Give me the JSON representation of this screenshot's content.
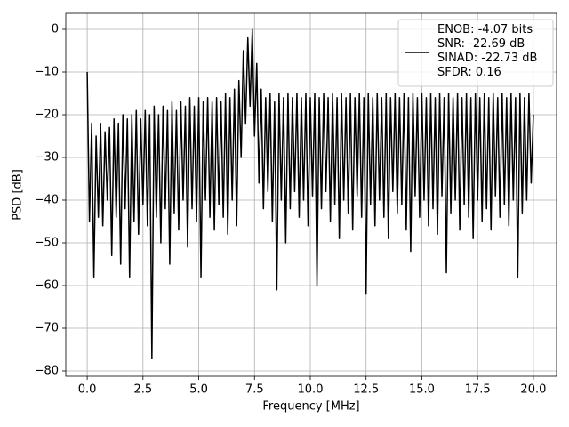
{
  "chart_data": {
    "type": "line",
    "xlabel": "Frequency [MHz]",
    "ylabel": "PSD [dB]",
    "xlim": [
      -0.96,
      21.04
    ],
    "ylim": [
      -81.25,
      3.75
    ],
    "xticks": [
      {
        "value": 0,
        "label": "0.0"
      },
      {
        "value": 2.5,
        "label": "2.5"
      },
      {
        "value": 5,
        "label": "5.0"
      },
      {
        "value": 7.5,
        "label": "7.5"
      },
      {
        "value": 10,
        "label": "10.0"
      },
      {
        "value": 12.5,
        "label": "12.5"
      },
      {
        "value": 15,
        "label": "15.0"
      },
      {
        "value": 17.5,
        "label": "17.5"
      },
      {
        "value": 20,
        "label": "20.0"
      }
    ],
    "yticks": [
      0,
      {
        "value": -10,
        "label": "−10"
      },
      {
        "value": -20,
        "label": "−20"
      },
      {
        "value": -30,
        "label": "−30"
      },
      {
        "value": -40,
        "label": "−40"
      },
      {
        "value": -50,
        "label": "−50"
      },
      {
        "value": -60,
        "label": "−60"
      },
      {
        "value": -70,
        "label": "−70"
      },
      {
        "value": -80,
        "label": "−80"
      }
    ],
    "grid": true,
    "legend": "upper right",
    "x": [
      0,
      0.1,
      0.2,
      0.3,
      0.4,
      0.5,
      0.6,
      0.7,
      0.8,
      0.9,
      1,
      1.1,
      1.2,
      1.3,
      1.4,
      1.5,
      1.6,
      1.7,
      1.8,
      1.9,
      2,
      2.1,
      2.2,
      2.3,
      2.4,
      2.5,
      2.6,
      2.7,
      2.8,
      2.9,
      3,
      3.1,
      3.2,
      3.3,
      3.4,
      3.5,
      3.6,
      3.7,
      3.8,
      3.9,
      4,
      4.1,
      4.2,
      4.3,
      4.4,
      4.5,
      4.6,
      4.7,
      4.8,
      4.9,
      5,
      5.1,
      5.2,
      5.3,
      5.4,
      5.5,
      5.6,
      5.7,
      5.8,
      5.9,
      6,
      6.1,
      6.2,
      6.3,
      6.4,
      6.5,
      6.6,
      6.7,
      6.8,
      6.9,
      7,
      7.1,
      7.2,
      7.3,
      7.4,
      7.5,
      7.6,
      7.7,
      7.8,
      7.9,
      8,
      8.1,
      8.2,
      8.3,
      8.4,
      8.5,
      8.6,
      8.7,
      8.8,
      8.9,
      9,
      9.1,
      9.2,
      9.3,
      9.4,
      9.5,
      9.6,
      9.7,
      9.8,
      9.9,
      10,
      10.1,
      10.2,
      10.3,
      10.4,
      10.5,
      10.6,
      10.7,
      10.8,
      10.9,
      11,
      11.1,
      11.2,
      11.3,
      11.4,
      11.5,
      11.6,
      11.7,
      11.8,
      11.9,
      12,
      12.1,
      12.2,
      12.3,
      12.4,
      12.5,
      12.6,
      12.7,
      12.8,
      12.9,
      13,
      13.1,
      13.2,
      13.3,
      13.4,
      13.5,
      13.6,
      13.7,
      13.8,
      13.9,
      14,
      14.1,
      14.2,
      14.3,
      14.4,
      14.5,
      14.6,
      14.7,
      14.8,
      14.9,
      15,
      15.1,
      15.2,
      15.3,
      15.4,
      15.5,
      15.6,
      15.7,
      15.8,
      15.9,
      16,
      16.1,
      16.2,
      16.3,
      16.4,
      16.5,
      16.6,
      16.7,
      16.8,
      16.9,
      17,
      17.1,
      17.2,
      17.3,
      17.4,
      17.5,
      17.6,
      17.7,
      17.8,
      17.9,
      18,
      18.1,
      18.2,
      18.3,
      18.4,
      18.5,
      18.6,
      18.7,
      18.8,
      18.9,
      19,
      19.1,
      19.2,
      19.3,
      19.4,
      19.5,
      19.6,
      19.7,
      19.8,
      19.9,
      20
    ],
    "series": [
      {
        "name": "ENOB: -4.07 bits\nSNR: -22.69 dB\nSINAD: -22.73 dB\nSFDR: 0.16",
        "color": "#000000",
        "values": [
          -10,
          -45,
          -22,
          -58,
          -25,
          -44,
          -22,
          -46,
          -24,
          -40,
          -23,
          -53,
          -21,
          -44,
          -22,
          -55,
          -20,
          -42,
          -21,
          -58,
          -20,
          -45,
          -19,
          -48,
          -21,
          -41,
          -19,
          -46,
          -20,
          -77,
          -18,
          -44,
          -20,
          -50,
          -18,
          -42,
          -19,
          -55,
          -17,
          -43,
          -19,
          -47,
          -17,
          -40,
          -18,
          -51,
          -16,
          -42,
          -18,
          -45,
          -16,
          -58,
          -17,
          -40,
          -16,
          -44,
          -17,
          -47,
          -16,
          -41,
          -17,
          -44,
          -15,
          -48,
          -16,
          -40,
          -14,
          -46,
          -12,
          -30,
          -5,
          -22,
          -2,
          -18,
          0,
          -25,
          -8,
          -36,
          -14,
          -42,
          -16,
          -38,
          -15,
          -45,
          -17,
          -61,
          -15,
          -40,
          -16,
          -50,
          -15,
          -42,
          -16,
          -38,
          -15,
          -44,
          -16,
          -40,
          -15,
          -46,
          -16,
          -39,
          -15,
          -60,
          -16,
          -42,
          -15,
          -38,
          -16,
          -45,
          -15,
          -41,
          -16,
          -49,
          -15,
          -40,
          -16,
          -43,
          -15,
          -47,
          -16,
          -39,
          -15,
          -44,
          -16,
          -62,
          -15,
          -41,
          -16,
          -46,
          -15,
          -40,
          -16,
          -44,
          -15,
          -49,
          -16,
          -38,
          -15,
          -43,
          -16,
          -41,
          -15,
          -47,
          -16,
          -52,
          -15,
          -39,
          -16,
          -44,
          -15,
          -40,
          -16,
          -46,
          -15,
          -42,
          -16,
          -48,
          -15,
          -39,
          -16,
          -57,
          -15,
          -43,
          -16,
          -40,
          -15,
          -47,
          -16,
          -41,
          -15,
          -44,
          -16,
          -49,
          -15,
          -40,
          -16,
          -45,
          -15,
          -42,
          -16,
          -47,
          -15,
          -39,
          -16,
          -44,
          -15,
          -41,
          -16,
          -46,
          -15,
          -40,
          -16,
          -58,
          -15,
          -43,
          -16,
          -40,
          -15,
          -36,
          -20
        ]
      }
    ]
  }
}
